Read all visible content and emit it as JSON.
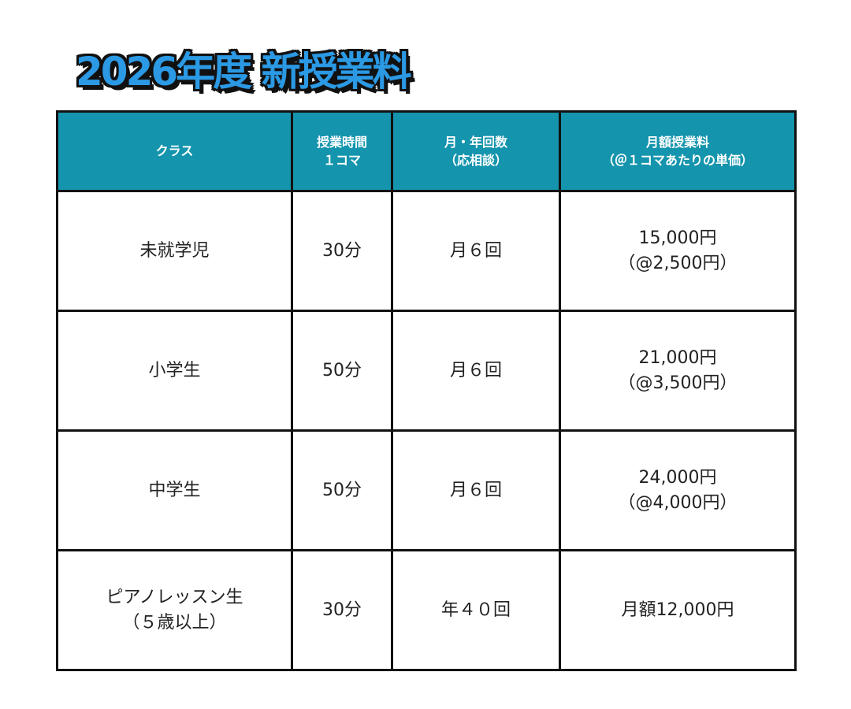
{
  "title": "2026年度 新授業料",
  "table": {
    "headers": [
      {
        "line1": "クラス",
        "line2": ""
      },
      {
        "line1": "授業時間",
        "line2": "１コマ"
      },
      {
        "line1": "月・年回数",
        "line2": "（応相談）"
      },
      {
        "line1": "月額授業料",
        "line2": "（＠１コマあたりの単価）"
      }
    ],
    "rows": [
      {
        "class": {
          "line1": "未就学児",
          "line2": ""
        },
        "duration": "30分",
        "frequency": "月６回",
        "fee": {
          "line1": "15,000円",
          "line2": "（@2,500円）"
        }
      },
      {
        "class": {
          "line1": "小学生",
          "line2": ""
        },
        "duration": "50分",
        "frequency": "月６回",
        "fee": {
          "line1": "21,000円",
          "line2": "（@3,500円）"
        }
      },
      {
        "class": {
          "line1": "中学生",
          "line2": ""
        },
        "duration": "50分",
        "frequency": "月６回",
        "fee": {
          "line1": "24,000円",
          "line2": "（@4,000円）"
        }
      },
      {
        "class": {
          "line1": "ピアノレッスン生",
          "line2": "（５歳以上）"
        },
        "duration": "30分",
        "frequency": "年４０回",
        "fee": {
          "line1": "月額12,000円",
          "line2": ""
        }
      }
    ]
  },
  "colors": {
    "header_background": "#1494ad",
    "title_fill": "#2b99e4",
    "border": "#111111"
  }
}
